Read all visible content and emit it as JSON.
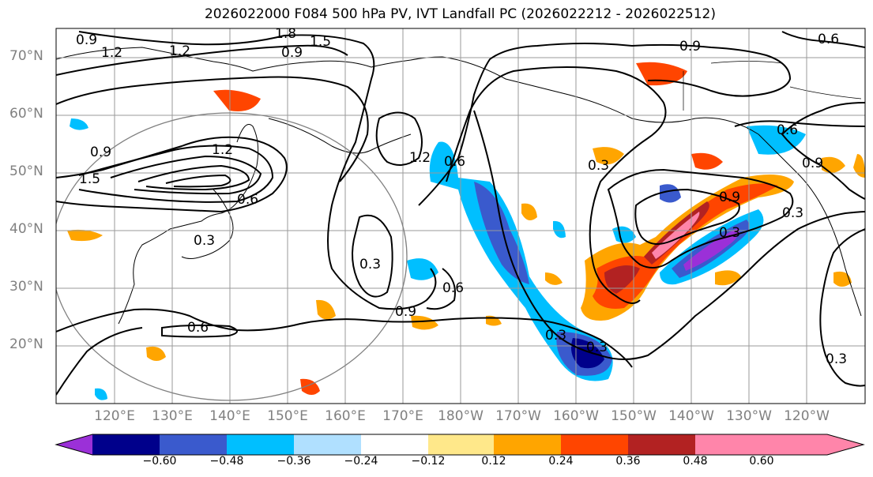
{
  "title": "2026022000 F084 500 hPa PV, IVT Landfall PC (2026022212 - 2026022512)",
  "lat_labels": [
    "70°N",
    "60°N",
    "50°N",
    "40°N",
    "30°N",
    "20°N"
  ],
  "lon_labels": [
    "120°E",
    "130°E",
    "140°E",
    "150°E",
    "160°E",
    "170°E",
    "180°W",
    "170°W",
    "160°W",
    "150°W",
    "140°W",
    "130°W",
    "120°W"
  ],
  "contour_labels": [
    "0.9",
    "1.2",
    "1.2",
    "1.8",
    "1.5",
    "0.9",
    "0.9",
    "0.6",
    "0.9",
    "1.5",
    "1.2",
    "0.3",
    "0.6",
    "1.2",
    "0.6",
    "0.3",
    "0.6",
    "0.3",
    "0.9",
    "0.3",
    "0.6",
    "0.9",
    "0.3",
    "0.9",
    "0.3",
    "0.6",
    "0.3",
    "0.3"
  ],
  "colorbar": {
    "ticks": [
      "−0.60",
      "−0.48",
      "−0.36",
      "−0.24",
      "−0.12",
      "0.12",
      "0.24",
      "0.36",
      "0.48",
      "0.60"
    ],
    "colors": [
      "#9b30d8",
      "#00008b",
      "#3a5acd",
      "#00bfff",
      "#b0e0ff",
      "#ffffff",
      "#ffe88a",
      "#ffa500",
      "#ff4500",
      "#b22222",
      "#ff85aa"
    ]
  }
}
